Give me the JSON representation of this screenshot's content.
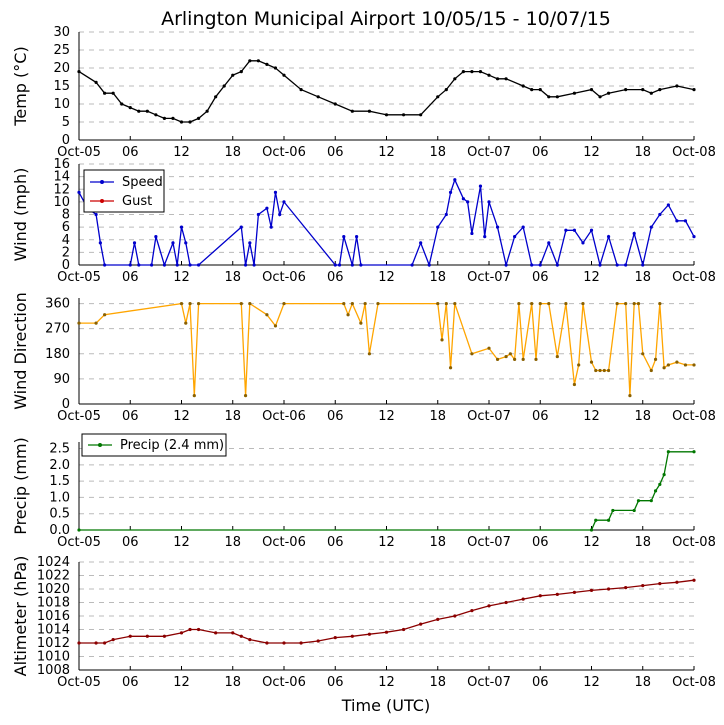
{
  "title": "Arlington Municipal Airport 10/05/15 - 10/07/15",
  "xlabel": "Time (UTC)",
  "x_tick_labels": [
    "Oct-05",
    "06",
    "12",
    "18",
    "Oct-06",
    "06",
    "12",
    "18",
    "Oct-07",
    "06",
    "12",
    "18",
    "Oct-08"
  ],
  "x_tick_hours": [
    0,
    6,
    12,
    18,
    24,
    30,
    36,
    42,
    48,
    54,
    60,
    66,
    72
  ],
  "colors": {
    "temp": "#000000",
    "speed": "#0000cc",
    "gust": "#cc0000",
    "direction": "#ffa500",
    "precip": "#007700",
    "altimeter": "#8b0000",
    "grid": "#bbbbbb"
  },
  "chart_data": [
    {
      "type": "line",
      "name": "temp",
      "ylabel": "Temp (°C)",
      "ylim": [
        0,
        30
      ],
      "yticks": [
        0,
        5,
        10,
        15,
        20,
        25,
        30
      ],
      "grid": true,
      "series": [
        {
          "name": "Temperature",
          "x": [
            0,
            2,
            3,
            4,
            5,
            6,
            7,
            8,
            9,
            10,
            11,
            12,
            13,
            14,
            15,
            16,
            17,
            18,
            19,
            20,
            21,
            22,
            23,
            24,
            26,
            28,
            30,
            32,
            34,
            36,
            38,
            40,
            42,
            43,
            44,
            45,
            46,
            47,
            48,
            49,
            50,
            52,
            53,
            54,
            55,
            56,
            58,
            60,
            61,
            62,
            64,
            66,
            67,
            68,
            70,
            72
          ],
          "values": [
            19,
            16,
            13,
            13,
            10,
            9,
            8,
            8,
            7,
            6,
            6,
            5,
            5,
            6,
            8,
            12,
            15,
            18,
            19,
            22,
            22,
            21,
            20,
            18,
            14,
            12,
            10,
            8,
            8,
            7,
            7,
            7,
            12,
            14,
            17,
            19,
            19,
            19,
            18,
            17,
            17,
            15,
            14,
            14,
            12,
            12,
            13,
            14,
            12,
            13,
            14,
            14,
            13,
            14,
            15,
            14
          ]
        }
      ]
    },
    {
      "type": "line",
      "name": "wind",
      "ylabel": "Wind (mph)",
      "ylim": [
        0,
        16
      ],
      "yticks": [
        0,
        2,
        4,
        6,
        8,
        10,
        12,
        14,
        16
      ],
      "grid": true,
      "legend": [
        "Speed",
        "Gust"
      ],
      "legend_position": "top-left",
      "series": [
        {
          "name": "Speed",
          "x": [
            0,
            1,
            2,
            2.5,
            3,
            6,
            6.5,
            7,
            8.5,
            9,
            10,
            11,
            11.5,
            12,
            12.5,
            13,
            14,
            19,
            19.5,
            20,
            20.5,
            21,
            22,
            22.5,
            23,
            23.5,
            24,
            30,
            30.5,
            31,
            32,
            32.5,
            33,
            39,
            40,
            41,
            42,
            43,
            43.5,
            44,
            45,
            45.5,
            46,
            47,
            47.5,
            48,
            49,
            50,
            51,
            52,
            53,
            54,
            55,
            56,
            57,
            58,
            59,
            60,
            61,
            62,
            63,
            64,
            65,
            66,
            67,
            68,
            69,
            70,
            71,
            72
          ],
          "values": [
            11.5,
            9,
            8,
            3.5,
            0,
            0,
            3.5,
            0,
            0,
            4.5,
            0,
            3.5,
            0,
            6,
            3.5,
            0,
            0,
            6,
            0,
            3.5,
            0,
            8,
            9,
            6,
            11.5,
            8,
            10,
            0,
            0,
            4.5,
            0,
            4.5,
            0,
            0,
            3.5,
            0,
            6,
            8,
            11.5,
            13.5,
            10.5,
            10,
            5,
            12.5,
            4.5,
            10,
            6,
            0,
            4.5,
            6,
            0,
            0,
            3.5,
            0,
            5.5,
            5.5,
            3.5,
            5.5,
            0,
            4.5,
            0,
            0,
            5,
            0,
            6,
            8,
            9.5,
            7,
            7,
            4.5
          ]
        },
        {
          "name": "Gust",
          "x": [],
          "values": []
        }
      ]
    },
    {
      "type": "line",
      "name": "wind_direction",
      "ylabel": "Wind Direction",
      "ylim": [
        0,
        380
      ],
      "yticks": [
        0,
        90,
        180,
        270,
        360
      ],
      "grid": true,
      "series": [
        {
          "name": "Direction",
          "x": [
            0,
            2,
            3,
            12,
            12.5,
            13,
            13.5,
            14,
            19,
            19.5,
            20,
            22,
            23,
            24,
            31,
            31.5,
            32,
            33,
            33.5,
            34,
            35,
            42,
            42.5,
            43,
            43.5,
            44,
            46,
            48,
            49,
            50,
            50.5,
            51,
            51.5,
            52,
            53,
            53.5,
            54,
            55,
            56,
            57,
            58,
            58.5,
            59,
            60,
            60.5,
            61,
            61.5,
            62,
            63,
            64,
            64.5,
            65,
            65.5,
            66,
            67,
            67.5,
            68,
            68.5,
            69,
            70,
            71,
            72
          ],
          "values": [
            290,
            290,
            320,
            360,
            290,
            360,
            30,
            360,
            360,
            30,
            360,
            320,
            280,
            360,
            360,
            320,
            360,
            290,
            360,
            180,
            360,
            360,
            230,
            360,
            130,
            360,
            180,
            200,
            160,
            170,
            180,
            160,
            360,
            160,
            360,
            160,
            360,
            360,
            170,
            360,
            70,
            140,
            360,
            150,
            120,
            120,
            120,
            120,
            360,
            360,
            30,
            360,
            360,
            180,
            120,
            160,
            360,
            130,
            140,
            150,
            140,
            140
          ]
        }
      ]
    },
    {
      "type": "line",
      "name": "precip",
      "ylabel": "Precip (mm)",
      "ylim": [
        0,
        2.7
      ],
      "yticks": [
        0.0,
        0.5,
        1.0,
        1.5,
        2.0,
        2.5
      ],
      "grid": true,
      "legend": [
        "Precip (2.4 mm)"
      ],
      "legend_position": "top-left",
      "series": [
        {
          "name": "Precip",
          "x": [
            0,
            60,
            60.5,
            62,
            62.5,
            65,
            65.5,
            67,
            67.5,
            68,
            68.5,
            69,
            72
          ],
          "values": [
            0,
            0,
            0.3,
            0.3,
            0.6,
            0.6,
            0.9,
            0.9,
            1.2,
            1.4,
            1.7,
            2.4,
            2.4
          ]
        }
      ]
    },
    {
      "type": "line",
      "name": "altimeter",
      "ylabel": "Altimeter (hPa)",
      "ylim": [
        1008,
        1024
      ],
      "yticks": [
        1008,
        1010,
        1012,
        1014,
        1016,
        1018,
        1020,
        1022,
        1024
      ],
      "grid": true,
      "series": [
        {
          "name": "Altimeter",
          "x": [
            0,
            2,
            3,
            4,
            6,
            8,
            10,
            12,
            13,
            14,
            16,
            18,
            19,
            20,
            22,
            24,
            26,
            28,
            30,
            32,
            34,
            36,
            38,
            40,
            42,
            44,
            46,
            48,
            50,
            52,
            54,
            56,
            58,
            60,
            62,
            64,
            66,
            68,
            70,
            72
          ],
          "values": [
            1012,
            1012,
            1012,
            1012.5,
            1013,
            1013,
            1013,
            1013.5,
            1014,
            1014,
            1013.5,
            1013.5,
            1013,
            1012.5,
            1012,
            1012,
            1012,
            1012.3,
            1012.8,
            1013,
            1013.3,
            1013.6,
            1014,
            1014.8,
            1015.5,
            1016,
            1016.8,
            1017.5,
            1018,
            1018.5,
            1019,
            1019.2,
            1019.5,
            1019.8,
            1020,
            1020.2,
            1020.5,
            1020.8,
            1021,
            1021.3
          ]
        }
      ]
    }
  ]
}
